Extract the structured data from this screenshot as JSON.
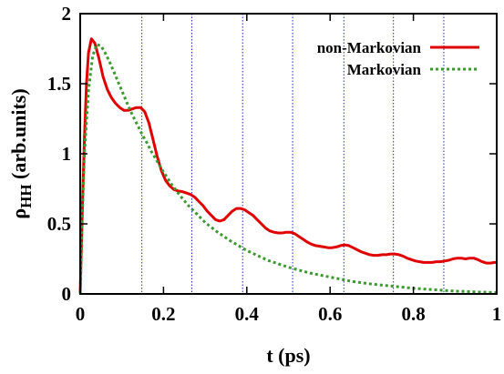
{
  "chart_data": {
    "type": "line",
    "xlabel": "t (ps)",
    "ylabel": {
      "main": "ρ",
      "sub": "HH",
      "unit": " (arb.units)"
    },
    "xlim": [
      0,
      1
    ],
    "ylim": [
      0,
      2
    ],
    "x_ticks": [
      {
        "value": 0,
        "label": "0"
      },
      {
        "value": 0.2,
        "label": "0.2"
      },
      {
        "value": 0.4,
        "label": "0.4"
      },
      {
        "value": 0.6,
        "label": "0.6"
      },
      {
        "value": 0.8,
        "label": "0.8"
      },
      {
        "value": 1,
        "label": "1"
      }
    ],
    "y_ticks": [
      {
        "value": 0,
        "label": "0"
      },
      {
        "value": 0.5,
        "label": "0.5"
      },
      {
        "value": 1,
        "label": "1"
      },
      {
        "value": 1.5,
        "label": "1.5"
      },
      {
        "value": 2,
        "label": "2"
      }
    ],
    "vertical_markers": [
      0.148,
      0.268,
      0.39,
      0.51,
      0.633,
      0.752,
      0.873
    ],
    "legend": {
      "placement": "top-right"
    },
    "series": [
      {
        "name": "non-Markovian",
        "color": "#e00000",
        "style": "solid",
        "points": [
          [
            0,
            0
          ],
          [
            0.005,
            0.6
          ],
          [
            0.01,
            1.1
          ],
          [
            0.015,
            1.5
          ],
          [
            0.02,
            1.72
          ],
          [
            0.027,
            1.82
          ],
          [
            0.035,
            1.79
          ],
          [
            0.045,
            1.68
          ],
          [
            0.055,
            1.55
          ],
          [
            0.065,
            1.46
          ],
          [
            0.075,
            1.4
          ],
          [
            0.085,
            1.36
          ],
          [
            0.095,
            1.33
          ],
          [
            0.105,
            1.31
          ],
          [
            0.115,
            1.31
          ],
          [
            0.125,
            1.32
          ],
          [
            0.135,
            1.33
          ],
          [
            0.145,
            1.33
          ],
          [
            0.155,
            1.3
          ],
          [
            0.165,
            1.22
          ],
          [
            0.175,
            1.1
          ],
          [
            0.185,
            0.98
          ],
          [
            0.195,
            0.88
          ],
          [
            0.205,
            0.81
          ],
          [
            0.215,
            0.77
          ],
          [
            0.225,
            0.745
          ],
          [
            0.235,
            0.735
          ],
          [
            0.245,
            0.73
          ],
          [
            0.255,
            0.72
          ],
          [
            0.265,
            0.71
          ],
          [
            0.275,
            0.69
          ],
          [
            0.285,
            0.66
          ],
          [
            0.295,
            0.63
          ],
          [
            0.305,
            0.59
          ],
          [
            0.315,
            0.56
          ],
          [
            0.325,
            0.53
          ],
          [
            0.335,
            0.52
          ],
          [
            0.345,
            0.53
          ],
          [
            0.355,
            0.56
          ],
          [
            0.365,
            0.59
          ],
          [
            0.375,
            0.61
          ],
          [
            0.385,
            0.61
          ],
          [
            0.395,
            0.6
          ],
          [
            0.405,
            0.58
          ],
          [
            0.415,
            0.56
          ],
          [
            0.425,
            0.53
          ],
          [
            0.435,
            0.5
          ],
          [
            0.445,
            0.47
          ],
          [
            0.455,
            0.45
          ],
          [
            0.465,
            0.44
          ],
          [
            0.475,
            0.435
          ],
          [
            0.485,
            0.435
          ],
          [
            0.495,
            0.44
          ],
          [
            0.505,
            0.44
          ],
          [
            0.515,
            0.43
          ],
          [
            0.525,
            0.41
          ],
          [
            0.535,
            0.39
          ],
          [
            0.545,
            0.37
          ],
          [
            0.555,
            0.355
          ],
          [
            0.565,
            0.345
          ],
          [
            0.575,
            0.34
          ],
          [
            0.585,
            0.335
          ],
          [
            0.595,
            0.33
          ],
          [
            0.605,
            0.33
          ],
          [
            0.615,
            0.335
          ],
          [
            0.625,
            0.345
          ],
          [
            0.635,
            0.35
          ],
          [
            0.645,
            0.345
          ],
          [
            0.655,
            0.33
          ],
          [
            0.665,
            0.315
          ],
          [
            0.675,
            0.3
          ],
          [
            0.685,
            0.29
          ],
          [
            0.695,
            0.28
          ],
          [
            0.705,
            0.275
          ],
          [
            0.715,
            0.275
          ],
          [
            0.725,
            0.28
          ],
          [
            0.735,
            0.28
          ],
          [
            0.745,
            0.285
          ],
          [
            0.755,
            0.285
          ],
          [
            0.765,
            0.28
          ],
          [
            0.775,
            0.27
          ],
          [
            0.785,
            0.255
          ],
          [
            0.795,
            0.245
          ],
          [
            0.805,
            0.235
          ],
          [
            0.815,
            0.23
          ],
          [
            0.825,
            0.225
          ],
          [
            0.835,
            0.225
          ],
          [
            0.845,
            0.225
          ],
          [
            0.855,
            0.23
          ],
          [
            0.865,
            0.23
          ],
          [
            0.875,
            0.235
          ],
          [
            0.885,
            0.24
          ],
          [
            0.895,
            0.25
          ],
          [
            0.905,
            0.255
          ],
          [
            0.915,
            0.255
          ],
          [
            0.925,
            0.25
          ],
          [
            0.935,
            0.255
          ],
          [
            0.945,
            0.255
          ],
          [
            0.955,
            0.245
          ],
          [
            0.965,
            0.23
          ],
          [
            0.975,
            0.22
          ],
          [
            0.985,
            0.22
          ],
          [
            0.995,
            0.225
          ],
          [
            1.0,
            0.225
          ]
        ]
      },
      {
        "name": "Markovian",
        "color": "#3b9a2e",
        "style": "dotted",
        "points": [
          [
            0,
            0
          ],
          [
            0.005,
            0.55
          ],
          [
            0.01,
            1.0
          ],
          [
            0.02,
            1.45
          ],
          [
            0.03,
            1.7
          ],
          [
            0.04,
            1.78
          ],
          [
            0.05,
            1.77
          ],
          [
            0.06,
            1.72
          ],
          [
            0.07,
            1.66
          ],
          [
            0.08,
            1.59
          ],
          [
            0.09,
            1.52
          ],
          [
            0.1,
            1.45
          ],
          [
            0.11,
            1.38
          ],
          [
            0.12,
            1.31
          ],
          [
            0.13,
            1.25
          ],
          [
            0.14,
            1.19
          ],
          [
            0.15,
            1.13
          ],
          [
            0.16,
            1.08
          ],
          [
            0.17,
            1.02
          ],
          [
            0.18,
            0.97
          ],
          [
            0.19,
            0.92
          ],
          [
            0.2,
            0.87
          ],
          [
            0.22,
            0.78
          ],
          [
            0.24,
            0.7
          ],
          [
            0.26,
            0.63
          ],
          [
            0.28,
            0.57
          ],
          [
            0.3,
            0.51
          ],
          [
            0.33,
            0.44
          ],
          [
            0.36,
            0.38
          ],
          [
            0.4,
            0.31
          ],
          [
            0.45,
            0.24
          ],
          [
            0.5,
            0.19
          ],
          [
            0.55,
            0.15
          ],
          [
            0.6,
            0.12
          ],
          [
            0.65,
            0.09
          ],
          [
            0.7,
            0.07
          ],
          [
            0.75,
            0.055
          ],
          [
            0.8,
            0.04
          ],
          [
            0.85,
            0.03
          ],
          [
            0.9,
            0.02
          ],
          [
            0.95,
            0.014
          ],
          [
            1.0,
            0.01
          ]
        ]
      }
    ]
  }
}
